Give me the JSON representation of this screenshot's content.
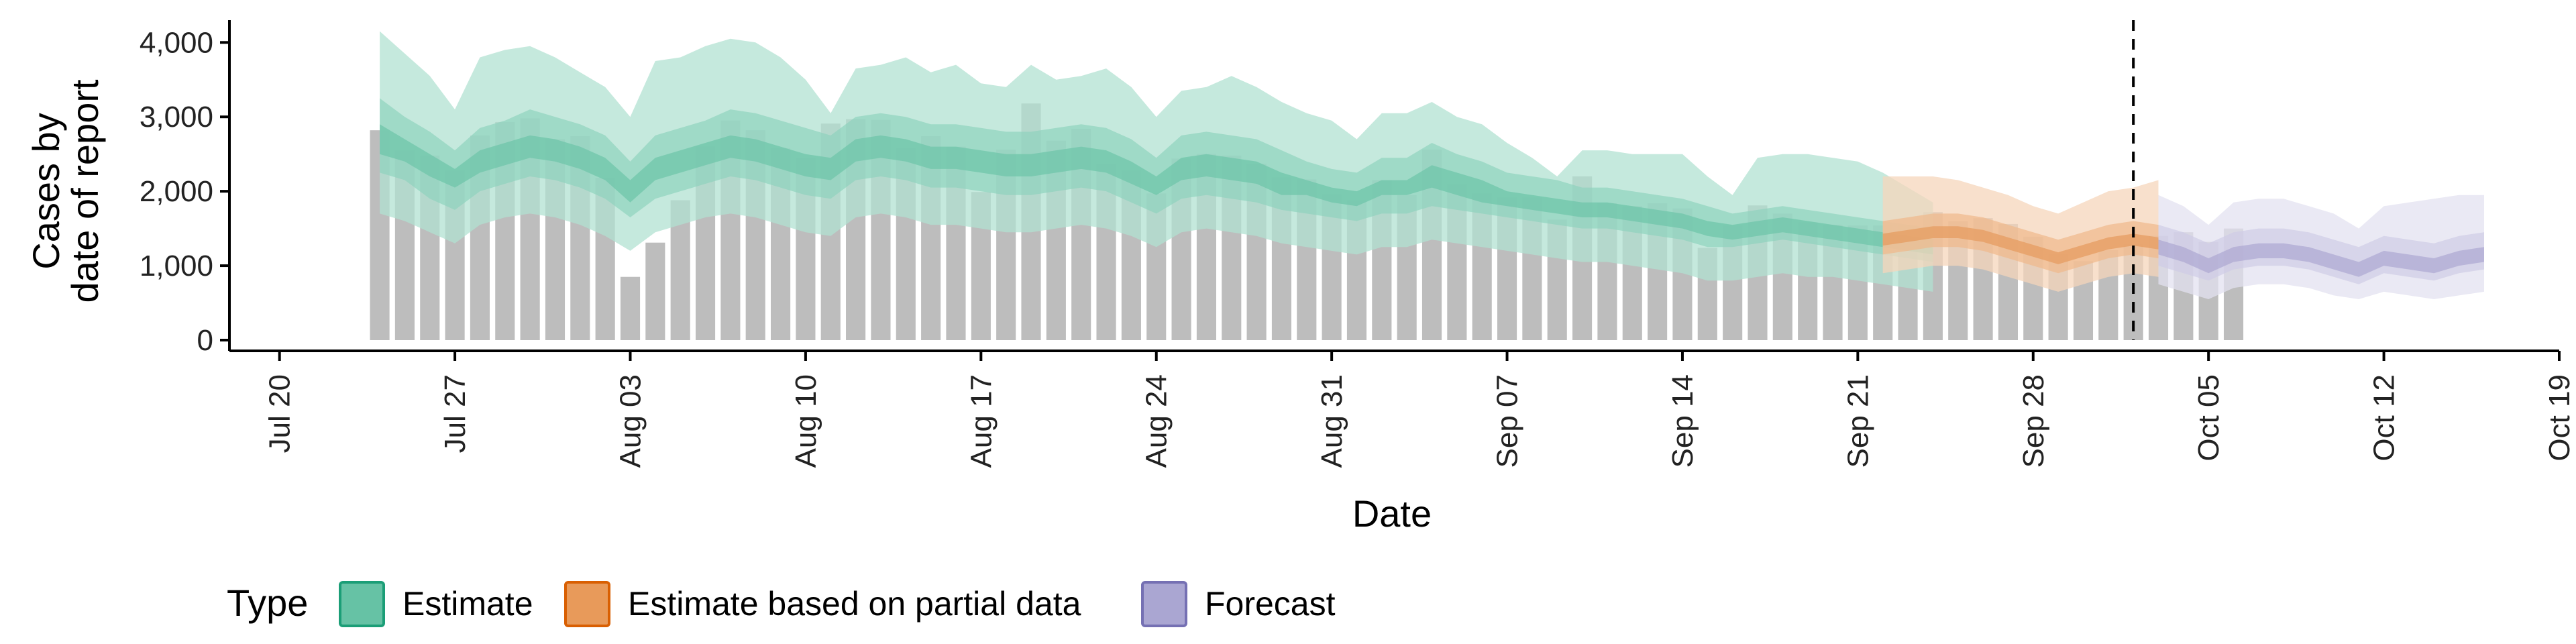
{
  "chart_data": {
    "type": "area",
    "ylabel_lines": [
      "Cases by",
      "date of report"
    ],
    "xlabel": "Date",
    "ylim": [
      0,
      4300
    ],
    "y_ticks": [
      0,
      1000,
      2000,
      3000,
      4000
    ],
    "y_tick_labels": [
      "0",
      "1,000",
      "2,000",
      "3,000",
      "4,000"
    ],
    "x_range": [
      "2020-07-18",
      "2020-10-19"
    ],
    "x_ticks": [
      "2020-07-20",
      "2020-07-27",
      "2020-08-03",
      "2020-08-10",
      "2020-08-17",
      "2020-08-24",
      "2020-08-31",
      "2020-09-07",
      "2020-09-14",
      "2020-09-21",
      "2020-09-28",
      "2020-10-05",
      "2020-10-12",
      "2020-10-19"
    ],
    "x_tick_labels": [
      "Jul 20",
      "Jul 27",
      "Aug 03",
      "Aug 10",
      "Aug 17",
      "Aug 24",
      "Aug 31",
      "Sep 07",
      "Sep 14",
      "Sep 21",
      "Sep 28",
      "Oct 05",
      "Oct 12",
      "Oct 19"
    ],
    "grid": false,
    "cutoff_date": "2020-10-02",
    "legend": {
      "title": "Type",
      "position": "bottom",
      "entries": [
        {
          "label": "Estimate",
          "fill": "#66c2a5",
          "stroke": "#1b9e77"
        },
        {
          "label": "Estimate based on partial data",
          "fill": "#e89a5a",
          "stroke": "#d95f02"
        },
        {
          "label": "Forecast",
          "fill": "#aaa6d2",
          "stroke": "#7570b3"
        }
      ]
    },
    "observed_bars": {
      "color": "#bdbdbd",
      "start_date": "2020-07-24",
      "values": [
        2820,
        2550,
        2480,
        2280,
        2750,
        2930,
        2980,
        2700,
        2740,
        2180,
        850,
        1310,
        1880,
        2600,
        2950,
        2820,
        2580,
        2450,
        2910,
        2970,
        2960,
        2580,
        2740,
        2600,
        1990,
        2560,
        3180,
        2680,
        2840,
        2370,
        2280,
        1970,
        2440,
        2500,
        2480,
        2370,
        2190,
        2160,
        1960,
        1880,
        2150,
        1950,
        2560,
        2090,
        1970,
        1920,
        1920,
        1620,
        2200,
        1840,
        1800,
        1840,
        1770,
        1240,
        1540,
        1810,
        1700,
        1580,
        1550,
        1540,
        1540,
        1540,
        1720,
        1600,
        1640,
        1560,
        1390,
        1160,
        1060,
        1210,
        1290,
        1400,
        1450,
        1320,
        1500
      ]
    },
    "series": [
      {
        "name": "Estimate",
        "colors": {
          "outer": "#b2e1d2",
          "mid": "#8fd3bd",
          "inner": "#6cc4a8",
          "line": "#4fb592"
        },
        "start_date": "2020-07-24",
        "median": [
          2700,
          2550,
          2350,
          2150,
          2400,
          2500,
          2600,
          2550,
          2450,
          2300,
          2000,
          2300,
          2400,
          2500,
          2600,
          2550,
          2450,
          2350,
          2300,
          2550,
          2600,
          2550,
          2450,
          2450,
          2400,
          2350,
          2350,
          2400,
          2450,
          2400,
          2250,
          2050,
          2300,
          2350,
          2300,
          2250,
          2100,
          2050,
          1950,
          1900,
          2050,
          2050,
          2200,
          2100,
          2000,
          1900,
          1850,
          1800,
          1750,
          1750,
          1700,
          1650,
          1600,
          1500,
          1450,
          1500,
          1550,
          1500,
          1450,
          1400,
          1350,
          1300,
          1250
        ],
        "inner": [
          [
            2500,
            2400,
            2200,
            2050,
            2250,
            2350,
            2450,
            2400,
            2300,
            2150,
            1850,
            2150,
            2250,
            2350,
            2450,
            2400,
            2300,
            2200,
            2150,
            2400,
            2450,
            2400,
            2300,
            2300,
            2250,
            2200,
            2200,
            2250,
            2300,
            2250,
            2100,
            1950,
            2150,
            2200,
            2150,
            2100,
            1950,
            1950,
            1850,
            1800,
            1950,
            1950,
            2050,
            1950,
            1850,
            1800,
            1750,
            1700,
            1650,
            1650,
            1600,
            1550,
            1500,
            1400,
            1350,
            1400,
            1450,
            1400,
            1350,
            1300,
            1250,
            1200,
            1150
          ],
          [
            2900,
            2700,
            2500,
            2300,
            2550,
            2650,
            2750,
            2700,
            2600,
            2450,
            2150,
            2450,
            2550,
            2650,
            2750,
            2700,
            2600,
            2500,
            2450,
            2700,
            2750,
            2700,
            2600,
            2600,
            2550,
            2500,
            2500,
            2550,
            2600,
            2550,
            2400,
            2200,
            2450,
            2500,
            2450,
            2400,
            2250,
            2150,
            2050,
            2000,
            2150,
            2150,
            2350,
            2250,
            2150,
            2000,
            1950,
            1900,
            1850,
            1850,
            1800,
            1750,
            1700,
            1600,
            1550,
            1600,
            1650,
            1600,
            1550,
            1500,
            1450,
            1400,
            1350
          ]
        ],
        "mid": [
          [
            2250,
            2150,
            1900,
            1750,
            2000,
            2100,
            2200,
            2150,
            2050,
            1900,
            1650,
            1900,
            2000,
            2100,
            2200,
            2150,
            2050,
            1950,
            1900,
            2150,
            2200,
            2150,
            2050,
            2050,
            2000,
            1950,
            1950,
            2000,
            2050,
            2000,
            1850,
            1700,
            1900,
            1950,
            1900,
            1850,
            1750,
            1700,
            1650,
            1600,
            1700,
            1700,
            1800,
            1750,
            1700,
            1650,
            1600,
            1550,
            1500,
            1500,
            1450,
            1400,
            1350,
            1250,
            1250,
            1300,
            1350,
            1300,
            1250,
            1200,
            1150,
            1100,
            1050
          ],
          [
            3250,
            3000,
            2800,
            2550,
            2850,
            2950,
            3100,
            3000,
            2900,
            2750,
            2400,
            2750,
            2850,
            2950,
            3100,
            3050,
            2950,
            2850,
            2750,
            3000,
            3050,
            3000,
            2900,
            2900,
            2850,
            2800,
            2800,
            2850,
            2900,
            2850,
            2700,
            2450,
            2750,
            2800,
            2750,
            2700,
            2550,
            2400,
            2300,
            2250,
            2450,
            2450,
            2650,
            2500,
            2400,
            2250,
            2200,
            2150,
            2050,
            2050,
            2000,
            1950,
            1900,
            1800,
            1700,
            1750,
            1800,
            1750,
            1700,
            1650,
            1600,
            1550,
            1500
          ]
        ],
        "outer": [
          [
            1700,
            1600,
            1450,
            1300,
            1550,
            1650,
            1700,
            1650,
            1550,
            1400,
            1200,
            1450,
            1550,
            1650,
            1700,
            1650,
            1550,
            1450,
            1400,
            1650,
            1700,
            1650,
            1550,
            1550,
            1500,
            1450,
            1450,
            1500,
            1550,
            1500,
            1400,
            1250,
            1450,
            1500,
            1450,
            1400,
            1300,
            1250,
            1200,
            1150,
            1250,
            1250,
            1350,
            1300,
            1250,
            1200,
            1150,
            1100,
            1050,
            1050,
            1000,
            950,
            900,
            800,
            800,
            850,
            900,
            850,
            850,
            800,
            750,
            700,
            650
          ],
          [
            4150,
            3850,
            3550,
            3100,
            3800,
            3900,
            3950,
            3800,
            3600,
            3400,
            3000,
            3750,
            3800,
            3950,
            4050,
            4000,
            3800,
            3500,
            3050,
            3650,
            3700,
            3800,
            3600,
            3700,
            3450,
            3400,
            3700,
            3500,
            3550,
            3650,
            3400,
            3000,
            3350,
            3400,
            3550,
            3400,
            3200,
            3050,
            2950,
            2700,
            3050,
            3050,
            3200,
            3000,
            2900,
            2650,
            2450,
            2200,
            2550,
            2550,
            2500,
            2500,
            2500,
            2200,
            1950,
            2450,
            2500,
            2500,
            2450,
            2400,
            2250,
            2050,
            1850
          ]
        ]
      },
      {
        "name": "Estimate based on partial data",
        "colors": {
          "outer": "#f6d5bb",
          "mid": "#efb88a",
          "inner": "#e69a5c",
          "line": "#d97b3a"
        },
        "start_date": "2020-09-22",
        "median": [
          1350,
          1400,
          1450,
          1450,
          1400,
          1300,
          1200,
          1100,
          1200,
          1300,
          1350,
          1300
        ],
        "inner": [
          [
            1270,
            1320,
            1370,
            1370,
            1320,
            1220,
            1120,
            1020,
            1120,
            1220,
            1270,
            1220
          ],
          [
            1430,
            1480,
            1530,
            1530,
            1480,
            1380,
            1280,
            1180,
            1280,
            1380,
            1430,
            1380
          ]
        ],
        "mid": [
          [
            1150,
            1200,
            1250,
            1250,
            1200,
            1100,
            1000,
            900,
            1000,
            1100,
            1150,
            1100
          ],
          [
            1600,
            1650,
            1700,
            1700,
            1650,
            1550,
            1450,
            1350,
            1450,
            1550,
            1600,
            1550
          ]
        ],
        "outer": [
          [
            900,
            950,
            1000,
            1000,
            950,
            850,
            750,
            650,
            750,
            850,
            900,
            850
          ],
          [
            2200,
            2200,
            2200,
            2150,
            2050,
            1950,
            1800,
            1700,
            1850,
            2000,
            2050,
            2150
          ]
        ]
      },
      {
        "name": "Forecast",
        "colors": {
          "outer": "#e3e2f0",
          "mid": "#cfcce5",
          "inner": "#aca7d1",
          "line": "#8e88c2"
        },
        "start_date": "2020-10-03",
        "median": [
          1250,
          1150,
          1000,
          1150,
          1200,
          1200,
          1150,
          1050,
          950,
          1100,
          1050,
          1000,
          1100,
          1150
        ],
        "inner": [
          [
            1150,
            1050,
            900,
            1050,
            1100,
            1100,
            1050,
            950,
            850,
            1000,
            950,
            900,
            1000,
            1050
          ],
          [
            1350,
            1250,
            1100,
            1250,
            1300,
            1300,
            1250,
            1150,
            1050,
            1200,
            1150,
            1100,
            1200,
            1250
          ]
        ],
        "mid": [
          [
            1000,
            900,
            800,
            950,
            1000,
            1000,
            950,
            850,
            750,
            900,
            850,
            800,
            900,
            950
          ],
          [
            1550,
            1450,
            1300,
            1450,
            1500,
            1500,
            1450,
            1350,
            1250,
            1400,
            1350,
            1300,
            1400,
            1450
          ]
        ],
        "outer": [
          [
            750,
            650,
            550,
            700,
            750,
            750,
            700,
            600,
            550,
            650,
            600,
            550,
            600,
            650
          ],
          [
            1950,
            1800,
            1550,
            1850,
            1900,
            1900,
            1800,
            1700,
            1500,
            1800,
            1850,
            1900,
            1950,
            1950
          ]
        ]
      }
    ]
  }
}
